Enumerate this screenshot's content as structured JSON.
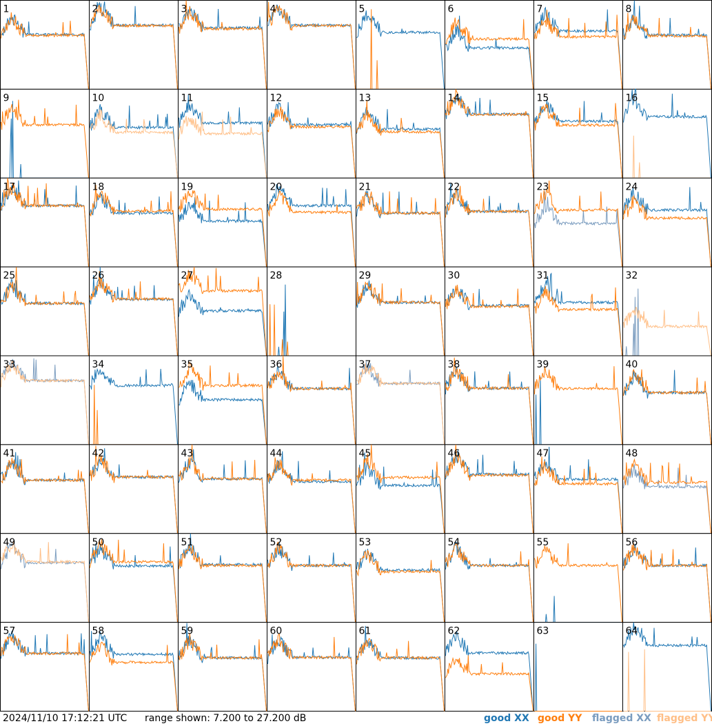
{
  "timestamp": "2024/11/10 17:12:21 UTC",
  "range_text": "range shown: 7.200 to 27.200 dB",
  "legend": [
    {
      "label": "good XX",
      "color": "#1f77b4"
    },
    {
      "label": "good YY",
      "color": "#ff7f0e"
    },
    {
      "label": "flagged XX",
      "color": "#7a9cbf"
    },
    {
      "label": "flagged YY",
      "color": "#ffbf87"
    }
  ],
  "chart_data": {
    "type": "line",
    "title": "",
    "xlabel": "",
    "ylabel": "",
    "ylim": [
      7.2,
      27.2
    ],
    "grid": {
      "rows": 8,
      "cols": 8
    },
    "panels": [
      {
        "id": "1",
        "xx": "good",
        "yy": "good",
        "xx_level": 19.5,
        "yy_level": 19.3
      },
      {
        "id": "2",
        "xx": "good",
        "yy": "good",
        "xx_level": 21.6,
        "yy_level": 21.5
      },
      {
        "id": "3",
        "xx": "good",
        "yy": "good",
        "xx_level": 21.0,
        "yy_level": 20.8
      },
      {
        "id": "4",
        "xx": "good",
        "yy": "good",
        "xx_level": 21.6,
        "yy_level": 21.5
      },
      {
        "id": "5",
        "xx": "good",
        "yy": "good",
        "xx_level": 20.0,
        "yy_level": 7.2
      },
      {
        "id": "6",
        "xx": "good",
        "yy": "good",
        "xx_level": 16.5,
        "yy_level": 18.5
      },
      {
        "id": "7",
        "xx": "good",
        "yy": "good",
        "xx_level": 20.3,
        "yy_level": 19.0
      },
      {
        "id": "8",
        "xx": "good",
        "yy": "good",
        "xx_level": 19.4,
        "yy_level": 19.2
      },
      {
        "id": "9",
        "xx": "good",
        "yy": "good",
        "xx_level": 7.2,
        "yy_level": 19.2
      },
      {
        "id": "10",
        "xx": "good",
        "yy": "flagged",
        "xx_level": 18.6,
        "yy_level": 17.5
      },
      {
        "id": "11",
        "xx": "good",
        "yy": "flagged",
        "xx_level": 19.6,
        "yy_level": 17.2
      },
      {
        "id": "12",
        "xx": "good",
        "yy": "good",
        "xx_level": 19.2,
        "yy_level": 18.7
      },
      {
        "id": "13",
        "xx": "good",
        "yy": "good",
        "xx_level": 18.2,
        "yy_level": 17.6
      },
      {
        "id": "14",
        "xx": "good",
        "yy": "good",
        "xx_level": 21.6,
        "yy_level": 21.5
      },
      {
        "id": "15",
        "xx": "good",
        "yy": "good",
        "xx_level": 20.0,
        "yy_level": 19.1
      },
      {
        "id": "16",
        "xx": "good",
        "yy": "flagged",
        "xx_level": 21.0,
        "yy_level": 7.2
      },
      {
        "id": "17",
        "xx": "good",
        "yy": "good",
        "xx_level": 21.0,
        "yy_level": 21.0
      },
      {
        "id": "18",
        "xx": "good",
        "yy": "good",
        "xx_level": 19.3,
        "yy_level": 19.8
      },
      {
        "id": "19",
        "xx": "good",
        "yy": "good",
        "xx_level": 17.5,
        "yy_level": 20.2
      },
      {
        "id": "20",
        "xx": "good",
        "yy": "good",
        "xx_level": 21.0,
        "yy_level": 19.5
      },
      {
        "id": "21",
        "xx": "good",
        "yy": "good",
        "xx_level": 19.3,
        "yy_level": 19.3
      },
      {
        "id": "22",
        "xx": "good",
        "yy": "good",
        "xx_level": 19.7,
        "yy_level": 19.7
      },
      {
        "id": "23",
        "xx": "flagged",
        "yy": "good",
        "xx_level": 17.0,
        "yy_level": 20.0
      },
      {
        "id": "24",
        "xx": "good",
        "yy": "good",
        "xx_level": 20.0,
        "yy_level": 18.2
      },
      {
        "id": "25",
        "xx": "good",
        "yy": "good",
        "xx_level": 19.0,
        "yy_level": 19.0
      },
      {
        "id": "26",
        "xx": "good",
        "yy": "good",
        "xx_level": 19.9,
        "yy_level": 20.0
      },
      {
        "id": "27",
        "xx": "good",
        "yy": "good",
        "xx_level": 17.3,
        "yy_level": 21.8
      },
      {
        "id": "28",
        "xx": "good",
        "yy": "good",
        "xx_level": 7.2,
        "yy_level": 7.2
      },
      {
        "id": "29",
        "xx": "good",
        "yy": "good",
        "xx_level": 19.2,
        "yy_level": 19.2
      },
      {
        "id": "30",
        "xx": "good",
        "yy": "good",
        "xx_level": 18.5,
        "yy_level": 18.3
      },
      {
        "id": "31",
        "xx": "good",
        "yy": "good",
        "xx_level": 19.2,
        "yy_level": 17.6
      },
      {
        "id": "32",
        "xx": "flagged",
        "yy": "flagged",
        "xx_level": 7.2,
        "yy_level": 13.8
      },
      {
        "id": "33",
        "xx": "flagged",
        "yy": "flagged",
        "xx_level": 21.6,
        "yy_level": 21.6
      },
      {
        "id": "34",
        "xx": "good",
        "yy": "good",
        "xx_level": 20.5,
        "yy_level": 7.5
      },
      {
        "id": "35",
        "xx": "good",
        "yy": "good",
        "xx_level": 17.3,
        "yy_level": 20.5
      },
      {
        "id": "36",
        "xx": "good",
        "yy": "good",
        "xx_level": 19.8,
        "yy_level": 19.8
      },
      {
        "id": "37",
        "xx": "flagged",
        "yy": "flagged",
        "xx_level": 21.0,
        "yy_level": 21.0
      },
      {
        "id": "38",
        "xx": "good",
        "yy": "good",
        "xx_level": 19.9,
        "yy_level": 19.9
      },
      {
        "id": "39",
        "xx": "good",
        "yy": "good",
        "xx_level": 7.2,
        "yy_level": 19.8
      },
      {
        "id": "40",
        "xx": "good",
        "yy": "good",
        "xx_level": 18.9,
        "yy_level": 18.9
      },
      {
        "id": "41",
        "xx": "good",
        "yy": "good",
        "xx_level": 19.2,
        "yy_level": 19.2
      },
      {
        "id": "42",
        "xx": "good",
        "yy": "good",
        "xx_level": 19.9,
        "yy_level": 19.9
      },
      {
        "id": "43",
        "xx": "good",
        "yy": "good",
        "xx_level": 19.5,
        "yy_level": 19.5
      },
      {
        "id": "44",
        "xx": "good",
        "yy": "good",
        "xx_level": 18.9,
        "yy_level": 19.2
      },
      {
        "id": "45",
        "xx": "good",
        "yy": "good",
        "xx_level": 18.0,
        "yy_level": 19.8
      },
      {
        "id": "46",
        "xx": "good",
        "yy": "good",
        "xx_level": 20.5,
        "yy_level": 20.3
      },
      {
        "id": "47",
        "xx": "good",
        "yy": "good",
        "xx_level": 19.4,
        "yy_level": 18.4
      },
      {
        "id": "48",
        "xx": "flagged",
        "yy": "good",
        "xx_level": 17.7,
        "yy_level": 18.7
      },
      {
        "id": "49",
        "xx": "flagged",
        "yy": "flagged",
        "xx_level": 20.6,
        "yy_level": 20.8
      },
      {
        "id": "50",
        "xx": "good",
        "yy": "good",
        "xx_level": 19.9,
        "yy_level": 20.8
      },
      {
        "id": "51",
        "xx": "good",
        "yy": "good",
        "xx_level": 20.2,
        "yy_level": 20.0
      },
      {
        "id": "52",
        "xx": "good",
        "yy": "good",
        "xx_level": 20.0,
        "yy_level": 20.0
      },
      {
        "id": "53",
        "xx": "good",
        "yy": "good",
        "xx_level": 19.0,
        "yy_level": 18.6
      },
      {
        "id": "54",
        "xx": "good",
        "yy": "good",
        "xx_level": 20.0,
        "yy_level": 20.0
      },
      {
        "id": "55",
        "xx": "good",
        "yy": "good",
        "xx_level": 7.2,
        "yy_level": 20.0
      },
      {
        "id": "56",
        "xx": "good",
        "yy": "good",
        "xx_level": 20.0,
        "yy_level": 20.0
      },
      {
        "id": "57",
        "xx": "good",
        "yy": "good",
        "xx_level": 20.2,
        "yy_level": 20.2
      },
      {
        "id": "58",
        "xx": "good",
        "yy": "good",
        "xx_level": 20.0,
        "yy_level": 18.2
      },
      {
        "id": "59",
        "xx": "good",
        "yy": "good",
        "xx_level": 19.2,
        "yy_level": 19.2
      },
      {
        "id": "60",
        "xx": "good",
        "yy": "good",
        "xx_level": 19.3,
        "yy_level": 19.3
      },
      {
        "id": "61",
        "xx": "good",
        "yy": "good",
        "xx_level": 19.2,
        "yy_level": 19.2
      },
      {
        "id": "62",
        "xx": "good",
        "yy": "good",
        "xx_level": 20.3,
        "yy_level": 15.6
      },
      {
        "id": "63",
        "xx": "good",
        "yy": "good",
        "xx_level": 7.2,
        "yy_level": 7.2
      },
      {
        "id": "64",
        "xx": "good",
        "yy": "flagged",
        "xx_level": 22.0,
        "yy_level": 7.2
      }
    ]
  }
}
